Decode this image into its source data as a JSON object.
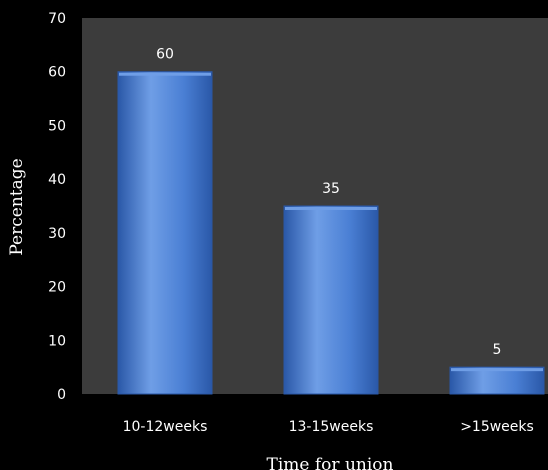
{
  "chart_data": {
    "type": "bar",
    "categories": [
      "10-12weeks",
      "13-15weeks",
      ">15weeks"
    ],
    "values": [
      60,
      35,
      5
    ],
    "data_labels": [
      "60",
      "35",
      "5"
    ],
    "title": "",
    "xlabel": "Time for union",
    "ylabel": "Percentage",
    "ylim": [
      0,
      70
    ],
    "yticks": [
      0,
      10,
      20,
      30,
      40,
      50,
      60,
      70
    ],
    "grid": false,
    "legend": "none"
  },
  "colors": {
    "background": "#000000",
    "plot_area": "#3c3c3c",
    "bar_fill": "#4a7fd4",
    "bar_light": "#6f9ee6",
    "bar_dark": "#2a58a8",
    "text": "#ffffff"
  }
}
